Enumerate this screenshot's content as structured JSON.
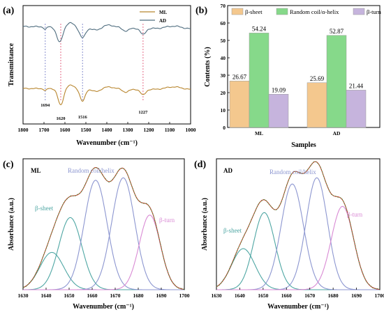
{
  "chart_data": [
    {
      "panel": "(a)",
      "type": "line",
      "xlabel": "Wavenumber (cm⁻¹)",
      "ylabel": "Transmittance",
      "xlim": [
        1800,
        1000
      ],
      "xticks": [
        1800,
        1700,
        1600,
        1500,
        1400,
        1300,
        1200,
        1100,
        1000
      ],
      "legend": {
        "placement": "top-right"
      },
      "series": [
        {
          "name": "ML",
          "color": "#b8862e"
        },
        {
          "name": "AD",
          "color": "#4f6d7f"
        }
      ],
      "markers": [
        {
          "label": "1694",
          "x": 1694,
          "color": "#7b83c9"
        },
        {
          "label": "1620",
          "x": 1620,
          "color": "#e35a7a"
        },
        {
          "label": "1516",
          "x": 1516,
          "color": "#7b83c9"
        },
        {
          "label": "1227",
          "x": 1227,
          "color": "#e35a7a"
        }
      ]
    },
    {
      "panel": "(b)",
      "type": "bar",
      "xlabel": "Samples",
      "ylabel": "Contents (%)",
      "ylim": [
        0,
        70
      ],
      "yticks": [
        0,
        10,
        20,
        30,
        40,
        50,
        60,
        70
      ],
      "categories": [
        "ML",
        "AD"
      ],
      "legend": {
        "placement": "top"
      },
      "series": [
        {
          "name": "β-sheet",
          "color": "#f4c88e",
          "values": [
            26.67,
            25.69
          ]
        },
        {
          "name": "Random coil/α-helix",
          "color": "#86d98a",
          "values": [
            54.24,
            52.87
          ]
        },
        {
          "name": "β-turn",
          "color": "#c6b4dd",
          "values": [
            19.09,
            21.44
          ]
        }
      ]
    },
    {
      "panel": "(c)",
      "type": "line",
      "inset_label": "ML",
      "xlabel": "Wavenumber (cm⁻¹)",
      "ylabel": "Absorbance (a.u.)",
      "xlim": [
        1630,
        1700
      ],
      "xticks": [
        1630,
        1640,
        1650,
        1660,
        1670,
        1680,
        1690,
        1700
      ],
      "annotations": [
        {
          "text": "β-sheet",
          "color": "#4ea6a3"
        },
        {
          "text": "Random coil/helix",
          "color": "#8c96d0"
        },
        {
          "text": "β-turn",
          "color": "#d98ad4"
        }
      ],
      "peaks": [
        {
          "center": 1642.5,
          "height": 0.3,
          "width": 5.2,
          "color": "#4ea6a3"
        },
        {
          "center": 1650.5,
          "height": 0.58,
          "width": 5.0,
          "color": "#4ea6a3"
        },
        {
          "center": 1661.5,
          "height": 0.88,
          "width": 5.0,
          "color": "#8c96d0"
        },
        {
          "center": 1673.5,
          "height": 0.9,
          "width": 5.0,
          "color": "#8c96d0"
        },
        {
          "center": 1685.0,
          "height": 0.6,
          "width": 4.6,
          "color": "#d98ad4"
        }
      ]
    },
    {
      "panel": "(d)",
      "type": "line",
      "inset_label": "AD",
      "xlabel": "Wavenumber (cm⁻¹)",
      "ylabel": "Absorbance (a.u.)",
      "xlim": [
        1630,
        1700
      ],
      "xticks": [
        1630,
        1640,
        1650,
        1660,
        1670,
        1680,
        1690,
        1700
      ],
      "annotations": [
        {
          "text": "β-sheet",
          "color": "#4ea6a3"
        },
        {
          "text": "Random coil/helix",
          "color": "#8c96d0"
        },
        {
          "text": "β-turn",
          "color": "#d98ad4"
        }
      ],
      "peaks": [
        {
          "center": 1641.5,
          "height": 0.33,
          "width": 5.0,
          "color": "#4ea6a3"
        },
        {
          "center": 1650.5,
          "height": 0.62,
          "width": 4.6,
          "color": "#4ea6a3"
        },
        {
          "center": 1662.5,
          "height": 0.85,
          "width": 4.8,
          "color": "#8c96d0"
        },
        {
          "center": 1673.0,
          "height": 0.9,
          "width": 4.6,
          "color": "#8c96d0"
        },
        {
          "center": 1684.0,
          "height": 0.67,
          "width": 4.8,
          "color": "#d98ad4"
        }
      ]
    }
  ]
}
